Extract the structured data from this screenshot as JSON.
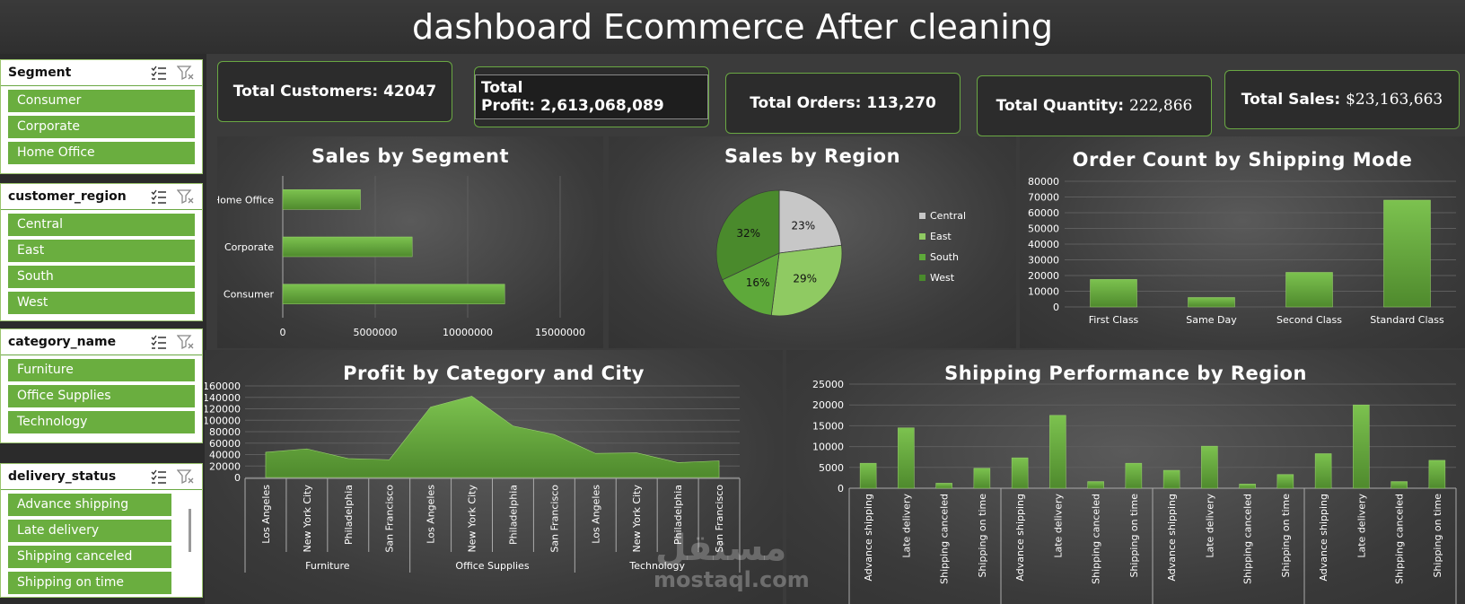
{
  "header": {
    "title": "dashboard Ecommerce After cleaning"
  },
  "slicers": [
    {
      "title": "Segment",
      "items": [
        "Consumer",
        "Corporate",
        "Home Office"
      ]
    },
    {
      "title": "customer_region",
      "items": [
        "Central",
        "East",
        "South",
        "West"
      ]
    },
    {
      "title": "category_name",
      "items": [
        "Furniture",
        "Office Supplies",
        "Technology"
      ]
    },
    {
      "title": "delivery_status",
      "items": [
        "Advance shipping",
        "Late delivery",
        "Shipping canceled",
        "Shipping on time"
      ]
    }
  ],
  "kpis": [
    {
      "label": "Total Customers:",
      "value": "42047"
    },
    {
      "label": "Total Profit:",
      "value": "2,613,068,089"
    },
    {
      "label": "Total Orders:",
      "value": "113,270"
    },
    {
      "label": "Total Quantity:",
      "value": "222,866"
    },
    {
      "label": "Total Sales:",
      "value": "$23,163,663"
    }
  ],
  "watermark": {
    "arabic": "مستقل",
    "latin": "mostaql.com"
  },
  "colors": {
    "accent": "#6aae3f",
    "accent_dark": "#4f8a2d",
    "panel_bg": "#3a3a3a"
  },
  "chart_data": [
    {
      "type": "bar",
      "orientation": "horizontal",
      "title": "Sales by Segment",
      "categories": [
        "Consumer",
        "Corporate",
        "Home Office"
      ],
      "values": [
        12000000,
        7000000,
        4200000
      ],
      "xlim": [
        0,
        15000000
      ],
      "ticks": [
        "0",
        "5000000",
        "10000000",
        "15000000"
      ],
      "grid": true
    },
    {
      "type": "pie",
      "title": "Sales by Region",
      "labels": [
        "Central",
        "East",
        "South",
        "West"
      ],
      "values": [
        23,
        29,
        16,
        32
      ],
      "data_labels": [
        "23%",
        "29%",
        "16%",
        "32%"
      ],
      "colors": [
        "#c7c7c7",
        "#8fca62",
        "#5ea93a",
        "#4a8a2c"
      ],
      "legend": "right"
    },
    {
      "type": "bar",
      "title": "Order Count by Shipping Mode",
      "categories": [
        "First Class",
        "Same Day",
        "Second Class",
        "Standard Class"
      ],
      "values": [
        17500,
        6000,
        22000,
        68000
      ],
      "ylim": [
        0,
        80000
      ],
      "ticks": [
        "0",
        "10000",
        "20000",
        "30000",
        "40000",
        "50000",
        "60000",
        "70000",
        "80000"
      ],
      "grid": true
    },
    {
      "type": "area",
      "title": "Profit by Category and City",
      "groups": [
        "Furniture",
        "Office Supplies",
        "Technology"
      ],
      "cities": [
        "Los Angeles",
        "New York City",
        "Philadelphia",
        "San Francisco"
      ],
      "values": [
        44000,
        50000,
        33000,
        31000,
        123000,
        142000,
        90000,
        75000,
        42000,
        43000,
        26000,
        29000
      ],
      "ylim": [
        0,
        160000
      ],
      "ticks": [
        "0",
        "20000",
        "40000",
        "60000",
        "80000",
        "100000",
        "120000",
        "140000",
        "160000"
      ],
      "grid": true
    },
    {
      "type": "bar",
      "title": "Shipping Performance by Region",
      "statuses": [
        "Advance shipping",
        "Late delivery",
        "Shipping canceled",
        "Shipping on time"
      ],
      "group_count": 4,
      "values": [
        6000,
        14500,
        1200,
        4800,
        7300,
        17500,
        1600,
        6000,
        4300,
        10100,
        1000,
        3300,
        8300,
        20000,
        1600,
        6700
      ],
      "ylim": [
        0,
        25000
      ],
      "ticks": [
        "0",
        "5000",
        "10000",
        "15000",
        "20000",
        "25000"
      ],
      "grid": true
    }
  ]
}
